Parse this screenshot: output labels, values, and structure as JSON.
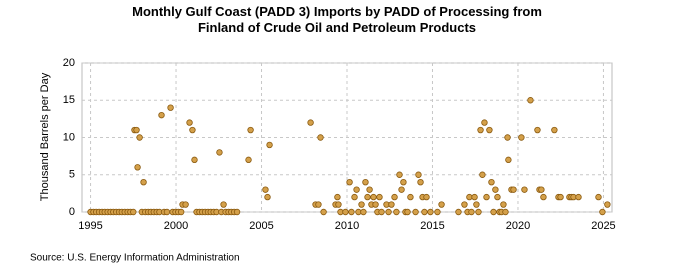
{
  "chart_data": {
    "type": "scatter",
    "title": "Monthly Gulf Coast (PADD 3) Imports by PADD of Processing from Finland of Crude Oil and Petroleum Products",
    "y_label": "Thousand Barrels per Day",
    "source": "Source: U.S. Energy Information Administration",
    "color": "#d4a04a",
    "edge_color": "#8a5a10",
    "grid": true,
    "xlim": [
      1994.5,
      2025.5
    ],
    "xticks": [
      1995,
      2000,
      2005,
      2010,
      2015,
      2020,
      2025
    ],
    "ylim": [
      0,
      20
    ],
    "yticks": [
      0,
      5,
      10,
      15,
      20
    ],
    "x": [
      1995,
      1995.17,
      1995.33,
      1995.5,
      1995.67,
      1995.83,
      1996,
      1996.17,
      1996.33,
      1996.5,
      1996.67,
      1996.83,
      1997,
      1997.17,
      1997.33,
      1997.5,
      1997.57,
      1997.69,
      1997.75,
      1997.87,
      1998,
      1998.1,
      1998.2,
      1998.37,
      1998.53,
      1998.7,
      1998.87,
      1999.03,
      1999.15,
      1999.3,
      1999.47,
      1999.68,
      1999.8,
      1999.97,
      2000.13,
      2000.3,
      2000.38,
      2000.56,
      2000.79,
      2000.96,
      2001.08,
      2001.2,
      2001.37,
      2001.53,
      2001.7,
      2001.87,
      2002.03,
      2002.2,
      2002.37,
      2002.54,
      2002.65,
      2002.78,
      2002.9,
      2003.07,
      2003.23,
      2003.4,
      2003.57,
      2004.24,
      2004.36,
      2005.23,
      2005.35,
      2005.47,
      2007.87,
      2008.16,
      2008.33,
      2008.45,
      2008.63,
      2009.33,
      2009.44,
      2009.5,
      2009.62,
      2009.91,
      2010.15,
      2010.26,
      2010.44,
      2010.56,
      2010.67,
      2010.85,
      2010.96,
      2011.08,
      2011.2,
      2011.32,
      2011.43,
      2011.55,
      2011.67,
      2011.78,
      2011.9,
      2012.02,
      2012.31,
      2012.43,
      2012.6,
      2012.78,
      2012.89,
      2013.07,
      2013.19,
      2013.3,
      2013.42,
      2013.54,
      2013.71,
      2014.01,
      2014.18,
      2014.3,
      2014.42,
      2014.53,
      2014.65,
      2014.88,
      2015.29,
      2015.53,
      2016.52,
      2016.87,
      2017.05,
      2017.16,
      2017.28,
      2017.46,
      2017.57,
      2017.69,
      2017.81,
      2017.92,
      2018.04,
      2018.16,
      2018.33,
      2018.45,
      2018.57,
      2018.68,
      2018.8,
      2018.92,
      2019.04,
      2019.15,
      2019.27,
      2019.39,
      2019.44,
      2019.62,
      2019.74,
      2020.2,
      2020.38,
      2020.73,
      2021.14,
      2021.26,
      2021.37,
      2021.49,
      2022.13,
      2022.37,
      2022.49,
      2023.01,
      2023.13,
      2023.25,
      2023.54,
      2024.71,
      2024.94,
      2025.23
    ],
    "values": [
      0,
      0,
      0,
      0,
      0,
      0,
      0,
      0,
      0,
      0,
      0,
      0,
      0,
      0,
      0,
      0,
      11,
      11,
      6,
      10,
      0,
      4,
      0,
      0,
      0,
      0,
      0,
      0,
      13,
      0,
      0,
      14,
      0,
      0,
      0,
      0,
      1,
      1,
      12,
      11,
      7,
      0,
      0,
      0,
      0,
      0,
      0,
      0,
      0,
      8,
      0,
      1,
      0,
      0,
      0,
      0,
      0,
      7,
      11,
      3,
      2,
      9,
      12,
      1,
      1,
      10,
      0,
      1,
      2,
      1,
      0,
      0,
      4,
      0,
      2,
      3,
      0,
      1,
      0,
      4,
      2,
      3,
      1,
      2,
      1,
      0,
      2,
      0,
      1,
      0,
      1,
      2,
      0,
      5,
      3,
      4,
      0,
      0,
      2,
      0,
      5,
      4,
      2,
      0,
      2,
      0,
      0,
      1,
      0,
      1,
      0,
      2,
      0,
      2,
      1,
      0,
      11,
      5,
      12,
      2,
      11,
      4,
      0,
      3,
      2,
      0,
      0,
      1,
      0,
      10,
      7,
      3,
      3,
      10,
      3,
      15,
      11,
      3,
      3,
      2,
      11,
      2,
      2,
      2,
      2,
      2,
      2,
      2,
      0,
      1
    ]
  }
}
